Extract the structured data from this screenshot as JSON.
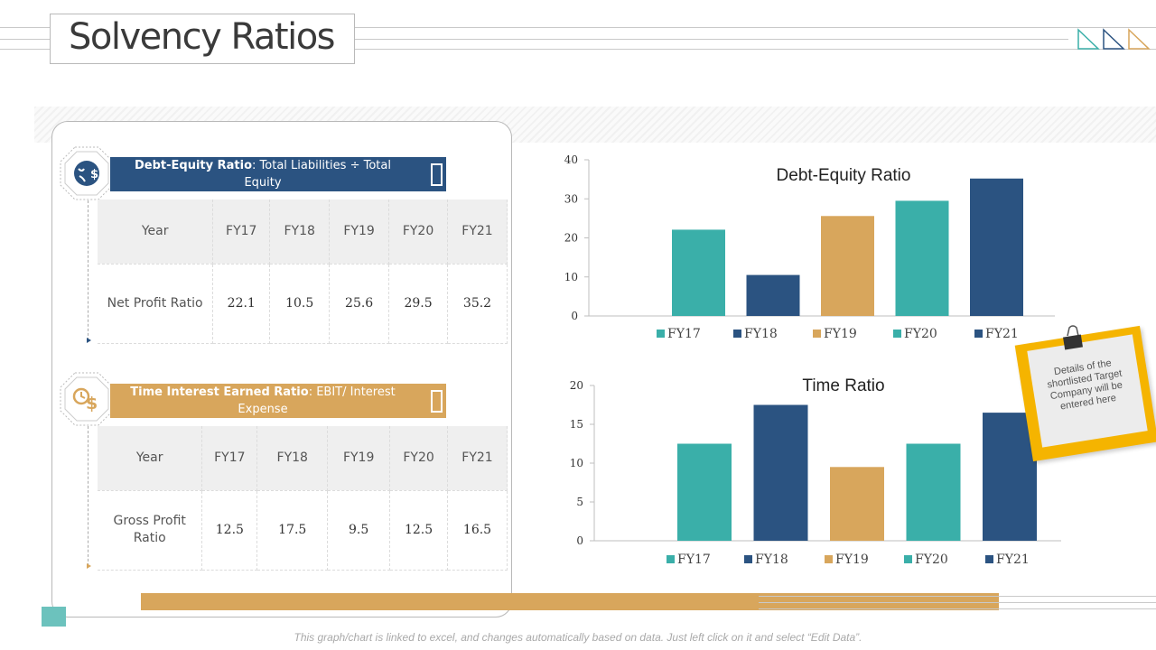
{
  "page": {
    "title": "Solvency Ratios",
    "footnote": "This graph/chart is linked to excel, and changes automatically based on data. Just left click on it and select “Edit Data”."
  },
  "colors": {
    "teal": "#3aafa9",
    "navy": "#2b5381",
    "gold": "#d8a65c",
    "note_yellow": "#f5b400"
  },
  "left_panel": {
    "debt_equity": {
      "banner_bold": "Debt-Equity Ratio",
      "banner_rest": ": Total Liabilities ÷ Total Equity",
      "icon": "money-bag-icon",
      "table": {
        "headers": [
          "Year",
          "FY17",
          "FY18",
          "FY19",
          "FY20",
          "FY21"
        ],
        "row_label": "Net Profit Ratio",
        "values": [
          "22.1",
          "10.5",
          "25.6",
          "29.5",
          "35.2"
        ]
      }
    },
    "time_interest": {
      "banner_bold": "Time Interest Earned Ratio",
      "banner_rest": ": EBIT/ Interest Expense",
      "icon": "clock-dollar-icon",
      "table": {
        "headers": [
          "Year",
          "FY17",
          "FY18",
          "FY19",
          "FY20",
          "FY21"
        ],
        "row_label": "Gross Profit Ratio",
        "values": [
          "12.5",
          "17.5",
          "9.5",
          "12.5",
          "16.5"
        ]
      }
    }
  },
  "chart_data": [
    {
      "type": "bar",
      "title": "Debt-Equity Ratio",
      "categories": [
        "FY17",
        "FY18",
        "FY19",
        "FY20",
        "FY21"
      ],
      "values": [
        22.1,
        10.5,
        25.6,
        29.5,
        35.2
      ],
      "bar_colors": [
        "#3aafa9",
        "#2b5381",
        "#d8a65c",
        "#3aafa9",
        "#2b5381"
      ],
      "ylim": [
        0,
        40
      ],
      "yticks": [
        0,
        10,
        20,
        30,
        40
      ],
      "xlabel": "",
      "ylabel": "",
      "legend": [
        "FY17",
        "FY18",
        "FY19",
        "FY20",
        "FY21"
      ],
      "legend_position": "bottom",
      "grid": false
    },
    {
      "type": "bar",
      "title": "Time Ratio",
      "categories": [
        "FY17",
        "FY18",
        "FY19",
        "FY20",
        "FY21"
      ],
      "values": [
        12.5,
        17.5,
        9.5,
        12.5,
        16.5
      ],
      "bar_colors": [
        "#3aafa9",
        "#2b5381",
        "#d8a65c",
        "#3aafa9",
        "#2b5381"
      ],
      "ylim": [
        0,
        20
      ],
      "yticks": [
        0,
        5,
        10,
        15,
        20
      ],
      "xlabel": "",
      "ylabel": "",
      "legend": [
        "FY17",
        "FY18",
        "FY19",
        "FY20",
        "FY21"
      ],
      "legend_position": "bottom",
      "grid": false
    }
  ],
  "sticky_note": {
    "text": "Details of the shortlisted Target Company will be entered here"
  }
}
